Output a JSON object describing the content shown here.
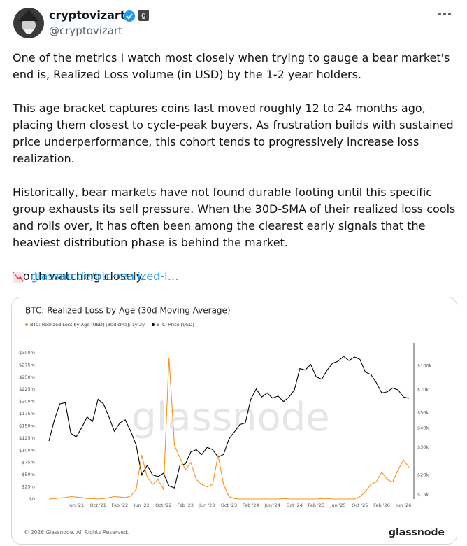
{
  "post": {
    "author": {
      "name": "cryptovizart",
      "badge": "g",
      "handle": "@cryptovizart"
    },
    "paragraphs": [
      "One of the metrics I watch most closely when trying to gauge a bear market's end is, Realized Loss volume (in USD) by the 1-2 year holders.",
      "This age bracket captures coins last moved roughly 12 to 24 months ago, placing them closest to cycle-peak buyers. As frustration builds with sustained price underperformance, this cohort tends to progressively increase loss realization.",
      "Historically, bear markets have not found durable footing until this specific group exhausts its sell pressure. When the 30D-SMA of their realized loss cools and rolls over, it has often been among the clearest early signals that the heaviest distribution phase is behind the market.",
      "Worth watching closely."
    ],
    "link": "glassno.de/btc-realized-l…"
  },
  "chart_data": {
    "type": "line",
    "title": "BTC: Realized Loss by Age (30d Moving Average)",
    "watermark": "glassnode",
    "copyright": "© 2026 Glassnode. All Rights Reserved.",
    "brand": "glassnode",
    "x": [
      "2021-01",
      "2021-02",
      "2021-03",
      "2021-04",
      "2021-05",
      "2021-06",
      "2021-07",
      "2021-08",
      "2021-09",
      "2021-10",
      "2021-11",
      "2021-12",
      "2022-01",
      "2022-02",
      "2022-03",
      "2022-04",
      "2022-05",
      "2022-06",
      "2022-07",
      "2022-08",
      "2022-09",
      "2022-10",
      "2022-11",
      "2022-12",
      "2023-01",
      "2023-02",
      "2023-03",
      "2023-04",
      "2023-05",
      "2023-06",
      "2023-07",
      "2023-08",
      "2023-09",
      "2023-10",
      "2023-11",
      "2023-12",
      "2024-01",
      "2024-02",
      "2024-03",
      "2024-04",
      "2024-05",
      "2024-06",
      "2024-07",
      "2024-08",
      "2024-09",
      "2024-10",
      "2024-11",
      "2024-12",
      "2025-01",
      "2025-02",
      "2025-03",
      "2025-04",
      "2025-05",
      "2025-06",
      "2025-07",
      "2025-08",
      "2025-09",
      "2025-10",
      "2025-11",
      "2025-12",
      "2026-01",
      "2026-02",
      "2026-03",
      "2026-04",
      "2026-05",
      "2026-06",
      "2026-07"
    ],
    "series": [
      {
        "name": "BTC: Realized Loss by Age [USD] [30d sma]: 1y-2y",
        "color": "#f7931a",
        "values": [
          0,
          1000000,
          2000000,
          3000000,
          5000000,
          4000000,
          3000000,
          1000000,
          1000000,
          0,
          1000000,
          3000000,
          5000000,
          4000000,
          3000000,
          6000000,
          20000000,
          90000000,
          45000000,
          30000000,
          40000000,
          20000000,
          290000000,
          110000000,
          85000000,
          60000000,
          75000000,
          40000000,
          30000000,
          25000000,
          30000000,
          90000000,
          30000000,
          5000000,
          1000000,
          0,
          0,
          0,
          0,
          0,
          0,
          0,
          0,
          1000000,
          0,
          0,
          0,
          0,
          0,
          0,
          1000000,
          1000000,
          0,
          0,
          0,
          0,
          0,
          5000000,
          15000000,
          30000000,
          35000000,
          55000000,
          40000000,
          35000000,
          60000000,
          80000000,
          65000000
        ]
      },
      {
        "name": "BTC: Price [USD]",
        "color": "#000000",
        "axis": "y2",
        "values": [
          33000,
          45000,
          57000,
          58000,
          37000,
          35000,
          40000,
          47000,
          44000,
          61000,
          57000,
          47000,
          38000,
          43000,
          45000,
          38000,
          31000,
          20000,
          23000,
          20000,
          19500,
          20500,
          17000,
          16500,
          23000,
          23500,
          28000,
          29000,
          27000,
          30000,
          29000,
          26000,
          27000,
          34000,
          37700,
          42000,
          43000,
          61000,
          71000,
          63000,
          67000,
          62000,
          64000,
          59000,
          63000,
          70000,
          96000,
          94000,
          102000,
          85000,
          82000,
          94000,
          104000,
          107000,
          115000,
          108000,
          114000,
          110000,
          91000,
          88000,
          78000,
          67000,
          68000,
          72000,
          70000,
          63000,
          62000
        ]
      }
    ],
    "xticks": [
      {
        "value": "2021-06",
        "label": "Jun '21"
      },
      {
        "value": "2021-10",
        "label": "Oct '21"
      },
      {
        "value": "2022-02",
        "label": "Feb '22"
      },
      {
        "value": "2022-06",
        "label": "Jun '22"
      },
      {
        "value": "2022-10",
        "label": "Oct '22"
      },
      {
        "value": "2023-02",
        "label": "Feb '23"
      },
      {
        "value": "2023-06",
        "label": "Jun '23"
      },
      {
        "value": "2023-10",
        "label": "Oct '23"
      },
      {
        "value": "2024-02",
        "label": "Feb '24"
      },
      {
        "value": "2024-06",
        "label": "Jun '24"
      },
      {
        "value": "2024-10",
        "label": "Oct '24"
      },
      {
        "value": "2025-02",
        "label": "Feb '25"
      },
      {
        "value": "2025-06",
        "label": "Jun '25"
      },
      {
        "value": "2025-10",
        "label": "Oct '25"
      },
      {
        "value": "2026-02",
        "label": "Feb '26"
      },
      {
        "value": "2026-06",
        "label": "Jun '26"
      }
    ],
    "ylim": [
      0,
      320000000
    ],
    "yticks": [
      {
        "value": 0,
        "label": "$0"
      },
      {
        "value": 25000000,
        "label": "$25m"
      },
      {
        "value": 50000000,
        "label": "$50m"
      },
      {
        "value": 75000000,
        "label": "$75m"
      },
      {
        "value": 100000000,
        "label": "$100m"
      },
      {
        "value": 125000000,
        "label": "$125m"
      },
      {
        "value": 150000000,
        "label": "$150m"
      },
      {
        "value": 175000000,
        "label": "$175m"
      },
      {
        "value": 200000000,
        "label": "$200m"
      },
      {
        "value": 225000000,
        "label": "$225m"
      },
      {
        "value": 250000000,
        "label": "$250m"
      },
      {
        "value": 275000000,
        "label": "$275m"
      },
      {
        "value": 300000000,
        "label": "$300m"
      }
    ],
    "y2lim": [
      14000,
      140000
    ],
    "y2log": true,
    "y2ticks": [
      {
        "value": 15000,
        "label": "$15k"
      },
      {
        "value": 20000,
        "label": "$20k"
      },
      {
        "value": 30000,
        "label": "$30k"
      },
      {
        "value": 40000,
        "label": "$40k"
      },
      {
        "value": 50000,
        "label": "$50k"
      },
      {
        "value": 70000,
        "label": "$70k"
      },
      {
        "value": 100000,
        "label": "$100k"
      }
    ],
    "grid": false
  }
}
